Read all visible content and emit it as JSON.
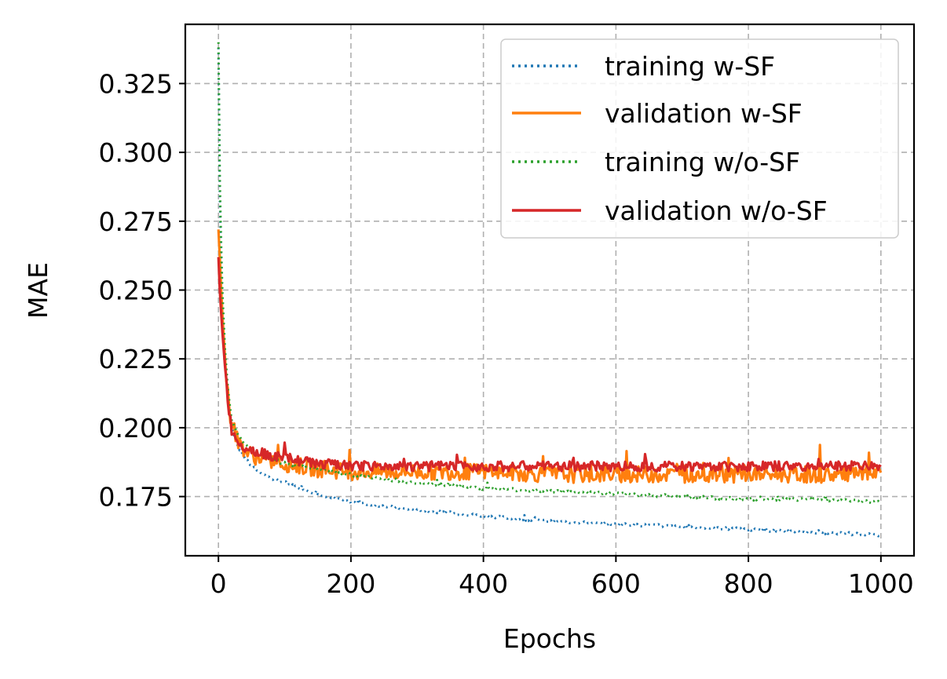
{
  "chart_data": {
    "type": "line",
    "title": "",
    "xlabel": "Epochs",
    "ylabel": "MAE",
    "xlim": [
      -50,
      1050
    ],
    "ylim": [
      0.1535,
      0.3465
    ],
    "xticks": [
      0,
      200,
      400,
      600,
      800,
      1000
    ],
    "xtick_labels": [
      "0",
      "200",
      "400",
      "600",
      "800",
      "1000"
    ],
    "yticks": [
      0.175,
      0.2,
      0.225,
      0.25,
      0.275,
      0.3,
      0.325
    ],
    "ytick_labels": [
      "0.175",
      "0.200",
      "0.225",
      "0.250",
      "0.275",
      "0.300",
      "0.325"
    ],
    "grid": true,
    "legend_position": "top-right",
    "series": [
      {
        "name": "training w-SF",
        "color": "#1f77b4",
        "linestyle": "dotted",
        "x": [
          0,
          2,
          5,
          10,
          15,
          20,
          30,
          40,
          50,
          75,
          100,
          150,
          200,
          300,
          400,
          500,
          600,
          700,
          800,
          900,
          1000
        ],
        "y": [
          0.338,
          0.285,
          0.25,
          0.225,
          0.21,
          0.2,
          0.193,
          0.189,
          0.186,
          0.182,
          0.18,
          0.176,
          0.173,
          0.17,
          0.168,
          0.166,
          0.165,
          0.164,
          0.163,
          0.162,
          0.161
        ],
        "noise": 0.0005
      },
      {
        "name": "validation w-SF",
        "color": "#ff7f0e",
        "linestyle": "solid",
        "x": [
          0,
          2,
          5,
          10,
          15,
          20,
          30,
          40,
          50,
          75,
          100,
          150,
          200,
          300,
          400,
          500,
          600,
          700,
          800,
          900,
          1000
        ],
        "y": [
          0.272,
          0.262,
          0.245,
          0.225,
          0.21,
          0.2,
          0.195,
          0.192,
          0.19,
          0.188,
          0.187,
          0.185,
          0.184,
          0.184,
          0.184,
          0.183,
          0.183,
          0.183,
          0.183,
          0.183,
          0.183
        ],
        "noise": 0.003
      },
      {
        "name": "training w/o-SF",
        "color": "#2ca02c",
        "linestyle": "dotted",
        "x": [
          0,
          2,
          5,
          10,
          15,
          20,
          30,
          40,
          50,
          75,
          100,
          150,
          200,
          300,
          400,
          500,
          600,
          700,
          800,
          900,
          1000
        ],
        "y": [
          0.34,
          0.29,
          0.255,
          0.228,
          0.212,
          0.203,
          0.197,
          0.194,
          0.192,
          0.189,
          0.187,
          0.185,
          0.183,
          0.18,
          0.178,
          0.177,
          0.176,
          0.175,
          0.174,
          0.174,
          0.173
        ],
        "noise": 0.0006
      },
      {
        "name": "validation w/o-SF",
        "color": "#d62728",
        "linestyle": "solid",
        "x": [
          0,
          2,
          5,
          10,
          15,
          20,
          30,
          40,
          50,
          75,
          100,
          150,
          200,
          300,
          400,
          500,
          600,
          700,
          800,
          900,
          1000
        ],
        "y": [
          0.262,
          0.25,
          0.238,
          0.222,
          0.208,
          0.199,
          0.195,
          0.193,
          0.192,
          0.19,
          0.189,
          0.187,
          0.186,
          0.186,
          0.186,
          0.186,
          0.186,
          0.186,
          0.186,
          0.186,
          0.186
        ],
        "noise": 0.0018
      }
    ]
  }
}
